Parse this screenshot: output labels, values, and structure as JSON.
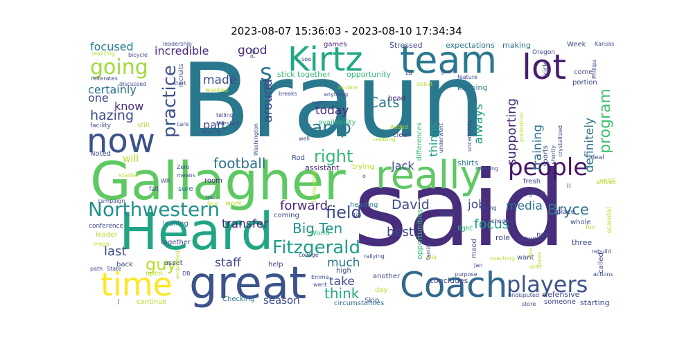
{
  "title": "2023-08-07 15:36:03 - 2023-08-10 17:34:34",
  "words": [
    {
      "id": "braun",
      "text": "Braun",
      "color": "#2a788e"
    },
    {
      "id": "said",
      "text": "said",
      "color": "#472d7b"
    },
    {
      "id": "gallagher",
      "text": "Gallagher",
      "color": "#5ec962"
    },
    {
      "id": "heard",
      "text": "Heard",
      "color": "#21a585"
    },
    {
      "id": "great",
      "text": "great",
      "color": "#3b528b"
    },
    {
      "id": "coach",
      "text": "Coach",
      "color": "#31688e"
    },
    {
      "id": "really",
      "text": "really",
      "color": "#5ec962"
    },
    {
      "id": "team",
      "text": "team",
      "color": "#2a788e"
    },
    {
      "id": "kirtz",
      "text": "Kirtz",
      "color": "#22a884"
    },
    {
      "id": "lot",
      "text": "lot",
      "color": "#481f70"
    },
    {
      "id": "now",
      "text": "now",
      "color": "#3b528b"
    },
    {
      "id": "time",
      "text": "time",
      "color": "#fde725"
    },
    {
      "id": "people",
      "text": "people",
      "color": "#471365"
    },
    {
      "id": "players",
      "text": "players",
      "color": "#3b528b"
    },
    {
      "id": "northwestern",
      "text": "Northwestern",
      "color": "#21918c"
    },
    {
      "id": "going",
      "text": "going",
      "color": "#a0da39"
    },
    {
      "id": "practice",
      "text": "practice",
      "color": "#3b528b"
    },
    {
      "id": "camp",
      "text": "camp",
      "color": "#2a788e"
    },
    {
      "id": "fitzgerald",
      "text": "Fitzgerald",
      "color": "#1f9e89"
    },
    {
      "id": "s",
      "text": "s",
      "color": "#2a788e"
    },
    {
      "id": "program",
      "text": "program",
      "color": "#44bf70"
    },
    {
      "id": "bryce",
      "text": "Bryce",
      "color": "#2c728e"
    },
    {
      "id": "football",
      "text": "football",
      "color": "#2c728e"
    },
    {
      "id": "field",
      "text": "field",
      "color": "#3e4989"
    },
    {
      "id": "right",
      "text": "right",
      "color": "#35b779"
    },
    {
      "id": "cats",
      "text": "Cats",
      "color": "#2a788e"
    },
    {
      "id": "bigten",
      "text": "Big Ten",
      "color": "#21918c"
    },
    {
      "id": "hazing",
      "text": "hazing",
      "color": "#3e4989"
    },
    {
      "id": "think",
      "text": "think",
      "color": "#22a884"
    },
    {
      "id": "focus",
      "text": "focus",
      "color": "#1f9e89"
    },
    {
      "id": "david",
      "text": "David",
      "color": "#3e4989"
    },
    {
      "id": "guy",
      "text": "guy",
      "color": "#b5de2b"
    },
    {
      "id": "forward",
      "text": "forward",
      "color": "#482878"
    },
    {
      "id": "transfer",
      "text": "transfer",
      "color": "#482878"
    },
    {
      "id": "incredible",
      "text": "incredible",
      "color": "#482878"
    },
    {
      "id": "certainly",
      "text": "certainly",
      "color": "#2c728e"
    },
    {
      "id": "focused",
      "text": "focused",
      "color": "#287d8e"
    },
    {
      "id": "good",
      "text": "good",
      "color": "#482878"
    },
    {
      "id": "made",
      "text": "made",
      "color": "#3e4989"
    },
    {
      "id": "part",
      "text": "part",
      "color": "#3e4989"
    },
    {
      "id": "today",
      "text": "today",
      "color": "#482878"
    },
    {
      "id": "around",
      "text": "around",
      "color": "#3e4989"
    },
    {
      "id": "always",
      "text": "always",
      "color": "#1f9e89"
    },
    {
      "id": "things",
      "text": "things",
      "color": "#1f9e89"
    },
    {
      "id": "training",
      "text": "training",
      "color": "#2c728e"
    },
    {
      "id": "supporting",
      "text": "supporting",
      "color": "#482878"
    },
    {
      "id": "definitely",
      "text": "definitely",
      "color": "#2c728e"
    },
    {
      "id": "media",
      "text": "media",
      "color": "#2c728e"
    },
    {
      "id": "job",
      "text": "job",
      "color": "#3e4989"
    },
    {
      "id": "best",
      "text": "best",
      "color": "#3e4989"
    },
    {
      "id": "much",
      "text": "much",
      "color": "#2c728e"
    },
    {
      "id": "take",
      "text": "take",
      "color": "#3e4989"
    },
    {
      "id": "staff",
      "text": "staff",
      "color": "#3e4989"
    },
    {
      "id": "last",
      "text": "last",
      "color": "#3e4989"
    },
    {
      "id": "season",
      "text": "season",
      "color": "#3e4989"
    },
    {
      "id": "jack",
      "text": "Jack",
      "color": "#3e4989"
    },
    {
      "id": "know",
      "text": "know",
      "color": "#482878"
    },
    {
      "id": "one",
      "text": "one",
      "color": "#3e4989"
    },
    {
      "id": "will",
      "text": "will",
      "color": "#b5de2b"
    },
    {
      "id": "expectations",
      "text": "expectations",
      "color": "#2a788e"
    },
    {
      "id": "stick_together",
      "text": "stick together",
      "color": "#35b779"
    },
    {
      "id": "opportunity",
      "text": "opportunity",
      "color": "#35b779"
    },
    {
      "id": "supporting2",
      "text": "keeping",
      "color": "#2c728e"
    },
    {
      "id": "making",
      "text": "making",
      "color": "#2c728e"
    },
    {
      "id": "week",
      "text": "Week",
      "color": "#3e4989"
    },
    {
      "id": "stressed",
      "text": "Stressed",
      "color": "#3e4989"
    },
    {
      "id": "games",
      "text": "games",
      "color": "#482878"
    },
    {
      "id": "head",
      "text": "head",
      "color": "#482878"
    },
    {
      "id": "assistant",
      "text": "assistant",
      "color": "#482878"
    },
    {
      "id": "trying",
      "text": "trying",
      "color": "#b5de2b"
    },
    {
      "id": "shirts",
      "text": "shirts",
      "color": "#2c728e"
    },
    {
      "id": "room",
      "text": "room",
      "color": "#482878"
    },
    {
      "id": "sure",
      "text": "sure",
      "color": "#2c728e"
    },
    {
      "id": "leaning",
      "text": "leaning",
      "color": "#2c728e"
    },
    {
      "id": "together",
      "text": "together",
      "color": "#3e4989"
    },
    {
      "id": "asset",
      "text": "asset",
      "color": "#3e4989"
    },
    {
      "id": "open",
      "text": "open",
      "color": "#b5de2b"
    },
    {
      "id": "coming",
      "text": "coming",
      "color": "#3e4989"
    },
    {
      "id": "heading",
      "text": "heading",
      "color": "#2c728e"
    },
    {
      "id": "world",
      "text": "World",
      "color": "#35b779"
    },
    {
      "id": "another",
      "text": "another",
      "color": "#3e4989"
    },
    {
      "id": "skip",
      "text": "Skip",
      "color": "#3e4989"
    },
    {
      "id": "help",
      "text": "help",
      "color": "#3e4989"
    },
    {
      "id": "checking",
      "text": "Checking",
      "color": "#2c728e"
    },
    {
      "id": "continue",
      "text": "continue",
      "color": "#b5de2b"
    },
    {
      "id": "circumstances",
      "text": "circumstances",
      "color": "#2c728e"
    },
    {
      "id": "concludes",
      "text": "concludes",
      "color": "#3e4989"
    },
    {
      "id": "light",
      "text": "light",
      "color": "#35b779"
    },
    {
      "id": "role",
      "text": "role",
      "color": "#3e4989"
    },
    {
      "id": "stayed",
      "text": "stayed",
      "color": "#3e4989"
    },
    {
      "id": "defensive",
      "text": "defensive",
      "color": "#3e4989"
    },
    {
      "id": "someone",
      "text": "someone",
      "color": "#3e4989"
    },
    {
      "id": "starting",
      "text": "starting",
      "color": "#3e4989"
    },
    {
      "id": "three",
      "text": "three",
      "color": "#3e4989"
    },
    {
      "id": "want",
      "text": "want",
      "color": "#3e4989"
    },
    {
      "id": "new",
      "text": "new",
      "color": "#3e4989"
    },
    {
      "id": "place",
      "text": "place",
      "color": "#3e4989"
    },
    {
      "id": "whole",
      "text": "whole",
      "color": "#3e4989"
    },
    {
      "id": "gone",
      "text": "gone",
      "color": "#3e4989"
    },
    {
      "id": "fresh",
      "text": "fresh",
      "color": "#3e4989"
    },
    {
      "id": "come",
      "text": "come",
      "color": "#3e4989"
    },
    {
      "id": "portion",
      "text": "portion",
      "color": "#3e4989"
    },
    {
      "id": "kick",
      "text": "kick",
      "color": "#3e4989"
    },
    {
      "id": "oregon",
      "text": "Oregon",
      "color": "#3e4989"
    },
    {
      "id": "kansas",
      "text": "Kansas",
      "color": "#3e4989"
    },
    {
      "id": "leadership",
      "text": "leadership",
      "color": "#3e4989"
    },
    {
      "id": "realizing",
      "text": "realizing",
      "color": "#b5de2b"
    },
    {
      "id": "bicycle",
      "text": "bicycle",
      "color": "#3e4989"
    },
    {
      "id": "reiterates",
      "text": "reiterates",
      "color": "#3e4989"
    },
    {
      "id": "discussed",
      "text": "discussed",
      "color": "#3e4989"
    },
    {
      "id": "facility",
      "text": "facility",
      "color": "#3e4989"
    },
    {
      "id": "noted",
      "text": "Noted",
      "color": "#3e4989"
    },
    {
      "id": "starter",
      "text": "starter",
      "color": "#b5de2b"
    },
    {
      "id": "zero",
      "text": "Zero",
      "color": "#3e4989"
    },
    {
      "id": "means",
      "text": "means",
      "color": "#3e4989"
    },
    {
      "id": "wr",
      "text": "WR",
      "color": "#3e4989"
    },
    {
      "id": "fall",
      "text": "fall",
      "color": "#3e4989"
    },
    {
      "id": "campaign",
      "text": "campaign",
      "color": "#3e4989"
    },
    {
      "id": "conference",
      "text": "conference",
      "color": "#3e4989"
    },
    {
      "id": "leader",
      "text": "leader",
      "color": "#b5de2b"
    },
    {
      "id": "mega",
      "text": "mega",
      "color": "#b5de2b"
    },
    {
      "id": "back",
      "text": "back",
      "color": "#3e4989"
    },
    {
      "id": "path",
      "text": "path",
      "color": "#3e4989"
    },
    {
      "id": "state",
      "text": "State",
      "color": "#3e4989"
    },
    {
      "id": "wanted",
      "text": "wanted",
      "color": "#b5de2b"
    },
    {
      "id": "telling",
      "text": "telling",
      "color": "#3e4989"
    },
    {
      "id": "marshall",
      "text": "Marshall",
      "color": "#3e4989"
    },
    {
      "id": "exactly",
      "text": "exactly",
      "color": "#3e4989"
    },
    {
      "id": "added",
      "text": "Added",
      "color": "#b5de2b"
    },
    {
      "id": "creating",
      "text": "creating",
      "color": "#b5de2b"
    },
    {
      "id": "clear",
      "text": "clear",
      "color": "#3e4989"
    },
    {
      "id": "routine",
      "text": "routine",
      "color": "#b5de2b"
    },
    {
      "id": "anything",
      "text": "anything",
      "color": "#3e4989"
    },
    {
      "id": "breaks",
      "text": "breaks",
      "color": "#3e4989"
    },
    {
      "id": "big",
      "text": "Big",
      "color": "#3e4989"
    },
    {
      "id": "goals",
      "text": "goals",
      "color": "#3e4989"
    },
    {
      "id": "debut",
      "text": "debut",
      "color": "#b5de2b"
    },
    {
      "id": "feature",
      "text": "feature",
      "color": "#3e4989"
    },
    {
      "id": "meeting",
      "text": "meeting",
      "color": "#3e4989"
    },
    {
      "id": "ideal",
      "text": "ideal",
      "color": "#3e4989"
    },
    {
      "id": "worst",
      "text": "worst",
      "color": "#b5de2b"
    },
    {
      "id": "arrived",
      "text": "arrived",
      "color": "#b5de2b"
    },
    {
      "id": "fun",
      "text": "fun",
      "color": "#b5de2b"
    },
    {
      "id": "rebuild",
      "text": "rebuild",
      "color": "#3e4989"
    },
    {
      "id": "called",
      "text": "called",
      "color": "#3e4989"
    },
    {
      "id": "actions",
      "text": "actions",
      "color": "#3e4989"
    },
    {
      "id": "undisputed",
      "text": "undisputed",
      "color": "#3e4989"
    },
    {
      "id": "store",
      "text": "store",
      "color": "#3e4989"
    },
    {
      "id": "purpose",
      "text": "purpose",
      "color": "#3e4989"
    },
    {
      "id": "coaching",
      "text": "coaching",
      "color": "#b5de2b"
    },
    {
      "id": "jan",
      "text": "Jan",
      "color": "#3e4989"
    },
    {
      "id": "losing",
      "text": "losing",
      "color": "#3e4989"
    },
    {
      "id": "schedule",
      "text": "schedule",
      "color": "#3e4989"
    },
    {
      "id": "high",
      "text": "high",
      "color": "#3e4989"
    },
    {
      "id": "went",
      "text": "went",
      "color": "#3e4989"
    },
    {
      "id": "emma",
      "text": "Emma",
      "color": "#3e4989"
    },
    {
      "id": "day",
      "text": "day",
      "color": "#b5de2b"
    },
    {
      "id": "college",
      "text": "college",
      "color": "#3e4989"
    },
    {
      "id": "rallying",
      "text": "rallying",
      "color": "#3e4989"
    },
    {
      "id": "alia",
      "text": "Alia",
      "color": "#b5de2b"
    },
    {
      "id": "us",
      "text": "us",
      "color": "#3e4989"
    },
    {
      "id": "hear",
      "text": "hear",
      "color": "#3e4989"
    },
    {
      "id": "rod",
      "text": "Rod",
      "color": "#3e4989"
    },
    {
      "id": "four",
      "text": "four",
      "color": "#b5de2b"
    },
    {
      "id": "low",
      "text": "low",
      "color": "#3e4989"
    },
    {
      "id": "work",
      "text": "work",
      "color": "#b5de2b"
    },
    {
      "id": "ii",
      "text": "II",
      "color": "#3e4989"
    },
    {
      "id": "lb",
      "text": "LB",
      "color": "#3e4989"
    },
    {
      "id": "see",
      "text": "see",
      "color": "#3e4989"
    },
    {
      "id": "j",
      "text": "J",
      "color": "#3e4989"
    },
    {
      "id": "db",
      "text": "DB",
      "color": "#3e4989"
    },
    {
      "id": "start",
      "text": "start",
      "color": "#3e4989"
    },
    {
      "id": "still",
      "text": "still",
      "color": "#b5de2b"
    },
    {
      "id": "well",
      "text": "well",
      "color": "#3e4989"
    },
    {
      "id": "viral",
      "text": "viral",
      "color": "#b5de2b"
    },
    {
      "id": "men",
      "text": "men",
      "color": "#3e4989"
    },
    {
      "id": "pat",
      "text": "Pat",
      "color": "#3e4989"
    },
    {
      "id": "o",
      "text": "o",
      "color": "#3e4989"
    },
    {
      "id": "recruits",
      "text": "recruits",
      "color": "#3e4989"
    },
    {
      "id": "care",
      "text": "care",
      "color": "#3e4989"
    },
    {
      "id": "washington",
      "text": "Washington",
      "color": "#3e4989"
    },
    {
      "id": "differences",
      "text": "differences",
      "color": "#35b779"
    },
    {
      "id": "availability",
      "text": "availability",
      "color": "#35b779"
    },
    {
      "id": "transpired",
      "text": "transpired",
      "color": "#b5de2b"
    },
    {
      "id": "opportunities",
      "text": "opportunities",
      "color": "#35b779"
    },
    {
      "id": "mood",
      "text": "mood",
      "color": "#3e4989"
    },
    {
      "id": "family",
      "text": "family",
      "color": "#3e4989"
    },
    {
      "id": "underwent",
      "text": "underwent",
      "color": "#3e4989"
    },
    {
      "id": "uncertainty",
      "text": "uncertainty",
      "color": "#3e4989"
    },
    {
      "id": "prevention",
      "text": "prevention",
      "color": "#b5de2b"
    },
    {
      "id": "sports",
      "text": "sports",
      "color": "#3e4989"
    },
    {
      "id": "shortly",
      "text": "shortly",
      "color": "#3e4989"
    },
    {
      "id": "crystallized",
      "text": "crystallized",
      "color": "#3e4989"
    },
    {
      "id": "phillips",
      "text": "Phillips",
      "color": "#3e4989"
    },
    {
      "id": "scandal",
      "text": "scandal",
      "color": "#b5de2b"
    },
    {
      "id": "line",
      "text": "line",
      "color": "#b5de2b"
    },
    {
      "id": "faces",
      "text": "faces",
      "color": "#b5de2b"
    },
    {
      "id": "embattled",
      "text": "embattled",
      "color": "#b5de2b"
    }
  ]
}
